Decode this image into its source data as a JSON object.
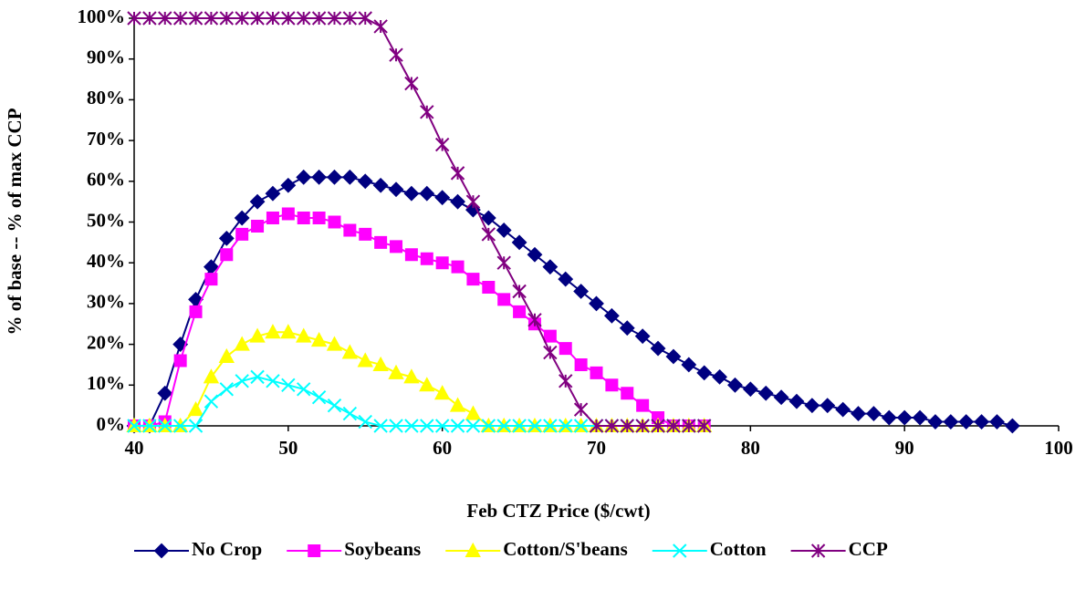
{
  "chart_data": {
    "type": "line",
    "xlabel": "Feb CTZ Price ($/cwt)",
    "ylabel": "% of base -- % of max CCP",
    "x": [
      40,
      41,
      42,
      43,
      44,
      45,
      46,
      47,
      48,
      49,
      50,
      51,
      52,
      53,
      54,
      55,
      56,
      57,
      58,
      59,
      60,
      61,
      62,
      63,
      64,
      65,
      66,
      67,
      68,
      69,
      70,
      71,
      72,
      73,
      74,
      75,
      76,
      77,
      78,
      79,
      80,
      81,
      82,
      83,
      84,
      85,
      86,
      87,
      88,
      89,
      90,
      91,
      92,
      93,
      94,
      95,
      96,
      97
    ],
    "xlim": [
      40,
      100
    ],
    "xticks": [
      40,
      50,
      60,
      70,
      80,
      90,
      100
    ],
    "ylim": [
      0,
      100
    ],
    "yticks": [
      {
        "value": 0,
        "label": "0%"
      },
      {
        "value": 10,
        "label": "10%"
      },
      {
        "value": 20,
        "label": "20%"
      },
      {
        "value": 30,
        "label": "30%"
      },
      {
        "value": 40,
        "label": "40%"
      },
      {
        "value": 50,
        "label": "50%"
      },
      {
        "value": 60,
        "label": "60%"
      },
      {
        "value": 70,
        "label": "70%"
      },
      {
        "value": 80,
        "label": "80%"
      },
      {
        "value": 90,
        "label": "90%"
      },
      {
        "value": 100,
        "label": "100%"
      }
    ],
    "series": [
      {
        "name": "No Crop",
        "color": "#000080",
        "marker": "diamond",
        "values": [
          0,
          0,
          8,
          20,
          31,
          39,
          46,
          51,
          55,
          57,
          59,
          61,
          61,
          61,
          61,
          60,
          59,
          58,
          57,
          57,
          56,
          55,
          53,
          51,
          48,
          45,
          42,
          39,
          36,
          33,
          30,
          27,
          24,
          22,
          19,
          17,
          15,
          13,
          12,
          10,
          9,
          8,
          7,
          6,
          5,
          5,
          4,
          3,
          3,
          2,
          2,
          2,
          1,
          1,
          1,
          1,
          1,
          0
        ]
      },
      {
        "name": "Soybeans",
        "color": "#ff00ff",
        "marker": "square",
        "values": [
          0,
          0,
          1,
          16,
          28,
          36,
          42,
          47,
          49,
          51,
          52,
          51,
          51,
          50,
          48,
          47,
          45,
          44,
          42,
          41,
          40,
          39,
          36,
          34,
          31,
          28,
          25,
          22,
          19,
          15,
          13,
          10,
          8,
          5,
          2,
          0,
          0,
          0,
          null,
          null,
          null,
          null,
          null,
          null,
          null,
          null,
          null,
          null,
          null,
          null,
          null,
          null,
          null,
          null,
          null,
          null,
          null,
          null
        ]
      },
      {
        "name": "Cotton/S'beans",
        "color": "#ffff00",
        "marker": "triangle",
        "values": [
          0,
          0,
          0,
          0,
          4,
          12,
          17,
          20,
          22,
          23,
          23,
          22,
          21,
          20,
          18,
          16,
          15,
          13,
          12,
          10,
          8,
          5,
          3,
          0,
          0,
          0,
          0,
          0,
          0,
          0,
          0,
          0,
          0,
          0,
          0,
          0,
          0,
          0,
          null,
          null,
          null,
          null,
          null,
          null,
          null,
          null,
          null,
          null,
          null,
          null,
          null,
          null,
          null,
          null,
          null,
          null,
          null,
          null
        ]
      },
      {
        "name": "Cotton",
        "color": "#00ffff",
        "marker": "x",
        "values": [
          0,
          0,
          0,
          0,
          0,
          6,
          9,
          11,
          12,
          11,
          10,
          9,
          7,
          5,
          3,
          1,
          0,
          0,
          0,
          0,
          0,
          0,
          0,
          0,
          0,
          0,
          0,
          0,
          0,
          0,
          0,
          0,
          0,
          0,
          0,
          0,
          0,
          0,
          null,
          null,
          null,
          null,
          null,
          null,
          null,
          null,
          null,
          null,
          null,
          null,
          null,
          null,
          null,
          null,
          null,
          null,
          null,
          null
        ]
      },
      {
        "name": "CCP",
        "color": "#800080",
        "marker": "star",
        "values": [
          100,
          100,
          100,
          100,
          100,
          100,
          100,
          100,
          100,
          100,
          100,
          100,
          100,
          100,
          100,
          100,
          98,
          91,
          84,
          77,
          69,
          62,
          55,
          47,
          40,
          33,
          26,
          18,
          11,
          4,
          0,
          0,
          0,
          0,
          0,
          0,
          0,
          0,
          null,
          null,
          null,
          null,
          null,
          null,
          null,
          null,
          null,
          null,
          null,
          null,
          null,
          null,
          null,
          null,
          null,
          null,
          null,
          null
        ]
      }
    ]
  }
}
